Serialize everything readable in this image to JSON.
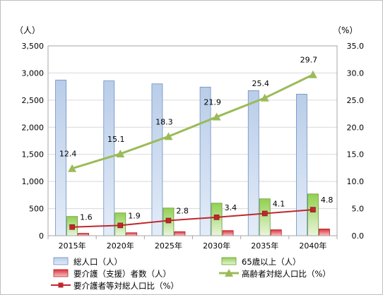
{
  "chart_data": {
    "type": "bar",
    "categories": [
      "2015年",
      "2020年",
      "2025年",
      "2030年",
      "2035年",
      "2040年"
    ],
    "y_left_unit": "（人）",
    "y_right_unit": "（%）",
    "y_left_ticks": [
      "0",
      "500",
      "1,000",
      "1,500",
      "2,000",
      "2,500",
      "3,000",
      "3,500"
    ],
    "y_right_ticks": [
      "0.0",
      "5.0",
      "10.0",
      "15.0",
      "20.0",
      "25.0",
      "30.0",
      "35.0"
    ],
    "ylim_left": [
      0,
      3500
    ],
    "ylim_right": [
      0,
      35
    ],
    "grid": true,
    "legend_position": "bottom",
    "series": [
      {
        "name": "総人口（人）",
        "type": "bar",
        "axis": "left",
        "color": "#8eb4e3",
        "values": [
          2870,
          2855,
          2800,
          2740,
          2675,
          2610
        ]
      },
      {
        "name": "65歳以上（人）",
        "type": "bar",
        "axis": "left",
        "color": "#92d050",
        "values": [
          355,
          420,
          510,
          600,
          680,
          770
        ]
      },
      {
        "name": "要介護（支援）者数（人）",
        "type": "bar",
        "axis": "left",
        "color": "#e0303a",
        "values": [
          45,
          55,
          75,
          95,
          110,
          125
        ]
      },
      {
        "name": "高齢者対総人口比（%）",
        "type": "line",
        "axis": "right",
        "color": "#9bbb59",
        "marker": "triangle",
        "values": [
          12.4,
          15.1,
          18.3,
          21.9,
          25.4,
          29.7
        ],
        "labels": [
          "12.4",
          "15.1",
          "18.3",
          "21.9",
          "25.4",
          "29.7"
        ]
      },
      {
        "name": "要介護者等対総人口比（%）",
        "type": "line",
        "axis": "right",
        "color": "#c0272d",
        "marker": "square",
        "values": [
          1.6,
          1.9,
          2.8,
          3.4,
          4.1,
          4.8
        ],
        "labels": [
          "1.6",
          "1.9",
          "2.8",
          "3.4",
          "4.1",
          "4.8"
        ]
      }
    ]
  }
}
